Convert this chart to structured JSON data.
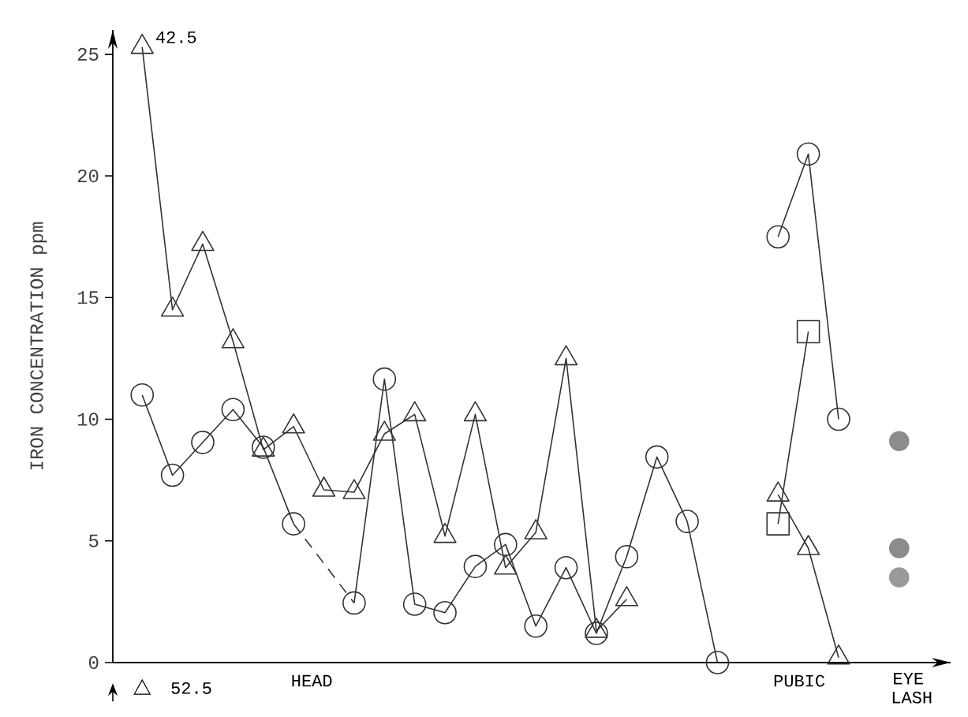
{
  "chart_data": {
    "type": "line",
    "ylabel": "IRON CONCENTRATION  ppm",
    "categories": [
      null,
      null,
      null,
      null,
      null,
      null,
      null,
      null,
      null,
      null,
      null,
      null,
      null,
      null,
      null,
      null,
      null,
      null,
      null,
      null,
      null,
      null,
      null,
      null,
      null,
      null
    ],
    "ylim": [
      0,
      26
    ],
    "yticks": [
      0,
      5,
      10,
      15,
      20,
      25
    ],
    "grid": false,
    "series": [
      {
        "type": "line",
        "marker": "triangle",
        "line_style": "solid",
        "color": "#333333",
        "values": [
          25.3,
          14.5,
          17.2,
          13.2,
          8.75,
          9.7,
          7.1,
          7.0,
          9.4,
          10.2,
          5.2,
          10.2,
          3.9,
          5.35,
          12.5,
          1.3,
          2.6,
          null,
          null,
          null,
          null,
          null,
          null,
          null,
          null,
          null
        ]
      },
      {
        "type": "line",
        "marker": "triangle",
        "line_style": "solid",
        "color": "#333333",
        "values": [
          null,
          null,
          null,
          null,
          null,
          null,
          null,
          null,
          null,
          null,
          null,
          null,
          null,
          null,
          null,
          null,
          null,
          null,
          null,
          null,
          null,
          6.9,
          4.7,
          0.2,
          null,
          null
        ]
      },
      {
        "type": "line",
        "marker": "circle",
        "line_style": "solid",
        "color": "#333333",
        "values": [
          11.0,
          7.7,
          9.05,
          10.4,
          8.85,
          5.7,
          null,
          null,
          null,
          null,
          null,
          null,
          null,
          null,
          null,
          null,
          null,
          null,
          null,
          null,
          null,
          null,
          null,
          null,
          null,
          null
        ]
      },
      {
        "type": "line",
        "marker": "none",
        "line_style": "dashed",
        "color": "#333333",
        "values": [
          null,
          null,
          null,
          null,
          null,
          5.7,
          null,
          2.45,
          null,
          null,
          null,
          null,
          null,
          null,
          null,
          null,
          null,
          null,
          null,
          null,
          null,
          null,
          null,
          null,
          null,
          null
        ]
      },
      {
        "type": "line",
        "marker": "circle",
        "line_style": "solid",
        "color": "#333333",
        "values": [
          null,
          null,
          null,
          null,
          null,
          null,
          null,
          2.45,
          11.65,
          2.4,
          2.05,
          3.95,
          4.85,
          1.5,
          3.9,
          1.2,
          4.35,
          8.45,
          5.8,
          0.0,
          null,
          null,
          null,
          null,
          null,
          null
        ]
      },
      {
        "type": "line",
        "marker": "circle",
        "line_style": "solid",
        "color": "#333333",
        "values": [
          null,
          null,
          null,
          null,
          null,
          null,
          null,
          null,
          null,
          null,
          null,
          null,
          null,
          null,
          null,
          null,
          null,
          null,
          null,
          null,
          null,
          17.5,
          20.9,
          10.0,
          null,
          null
        ]
      },
      {
        "type": "line",
        "marker": "square",
        "line_style": "solid",
        "color": "#333333",
        "values": [
          null,
          null,
          null,
          null,
          null,
          null,
          null,
          null,
          null,
          null,
          null,
          null,
          null,
          null,
          null,
          null,
          null,
          null,
          null,
          null,
          null,
          5.7,
          13.6,
          null,
          null,
          null
        ]
      },
      {
        "type": "scatter",
        "marker": "circle",
        "color": "#8c8c8c",
        "values": [
          null,
          null,
          null,
          null,
          null,
          null,
          null,
          null,
          null,
          null,
          null,
          null,
          null,
          null,
          null,
          null,
          null,
          null,
          null,
          null,
          null,
          null,
          null,
          null,
          null,
          9.1
        ]
      },
      {
        "type": "scatter",
        "marker": "circle",
        "color": "#8c8c8c",
        "values": [
          null,
          null,
          null,
          null,
          null,
          null,
          null,
          null,
          null,
          null,
          null,
          null,
          null,
          null,
          null,
          null,
          null,
          null,
          null,
          null,
          null,
          null,
          null,
          null,
          null,
          4.7
        ]
      },
      {
        "type": "scatter",
        "marker": "circle",
        "color": "#9a9a9a",
        "values": [
          null,
          null,
          null,
          null,
          null,
          null,
          null,
          null,
          null,
          null,
          null,
          null,
          null,
          null,
          null,
          null,
          null,
          null,
          null,
          null,
          null,
          null,
          null,
          null,
          null,
          3.5
        ]
      }
    ],
    "annotations": [
      "42.5",
      "52.5",
      "HEAD",
      "PUBIC",
      "EYE LASH"
    ]
  }
}
